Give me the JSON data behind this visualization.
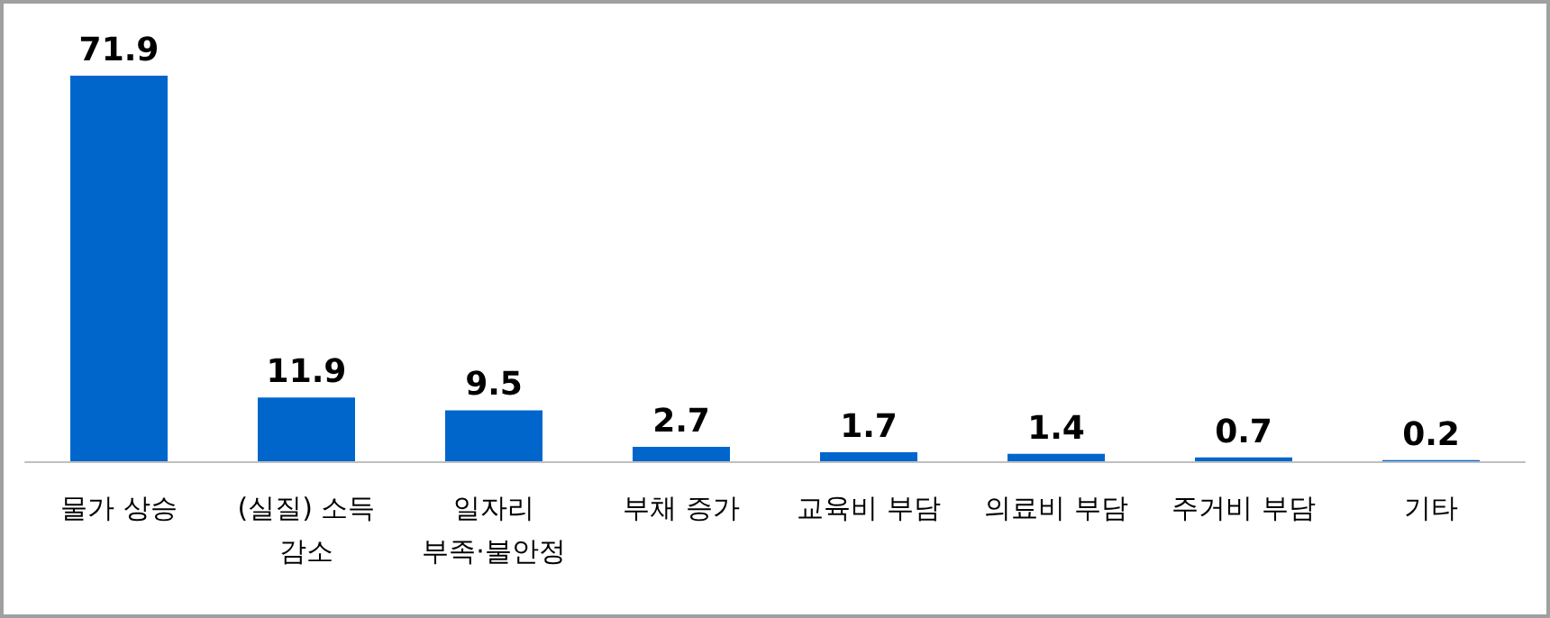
{
  "chart_data": {
    "type": "bar",
    "categories": [
      "물가 상승",
      "(실질) 소득\n감소",
      "일자리\n부족·불안정",
      "부채 증가",
      "교육비 부담",
      "의료비 부담",
      "주거비 부담",
      "기타"
    ],
    "values": [
      71.9,
      11.9,
      9.5,
      2.7,
      1.7,
      1.4,
      0.7,
      0.2
    ],
    "color": "#0066cc",
    "data_labels": true
  }
}
